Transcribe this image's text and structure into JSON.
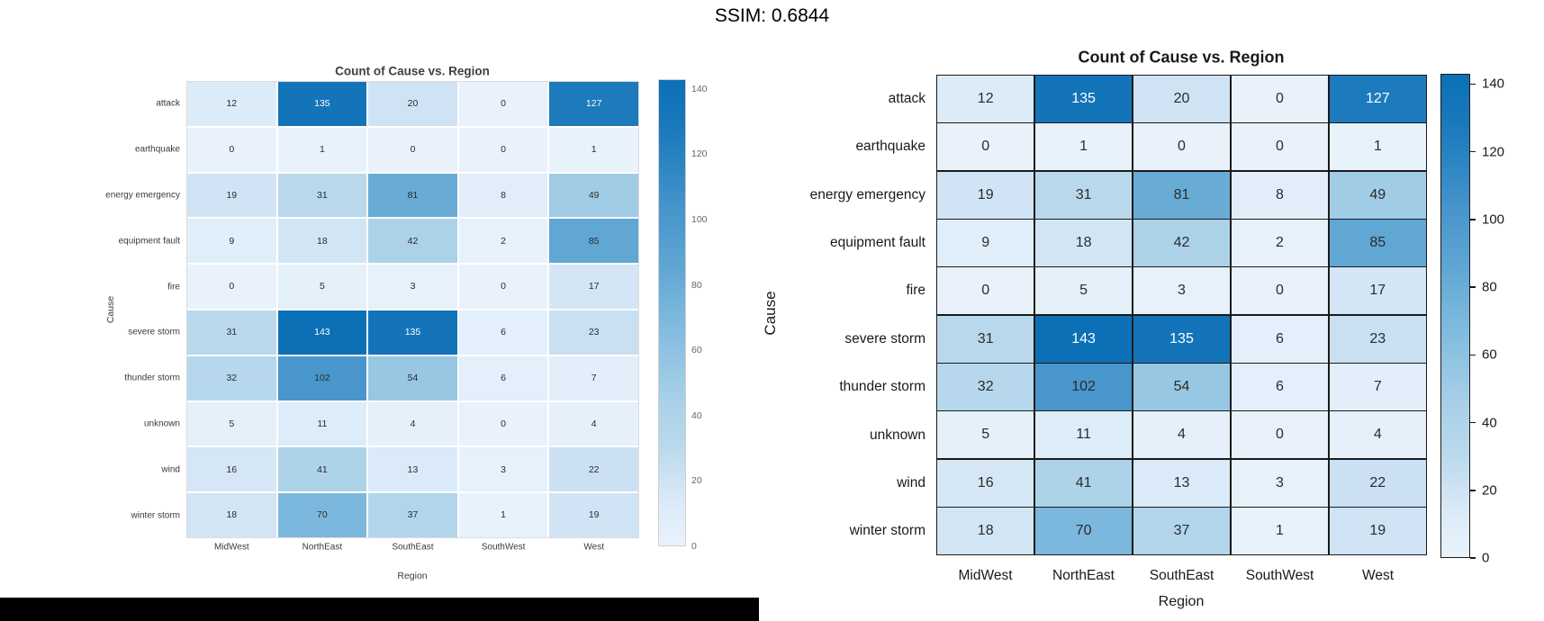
{
  "page": {
    "title": "SSIM: 0.6844"
  },
  "colors": {
    "scale": [
      [
        0.0,
        "#e9f2fb"
      ],
      [
        0.07,
        "#dfedf9"
      ],
      [
        0.14,
        "#cfe3f4"
      ],
      [
        0.22,
        "#b8d8ec"
      ],
      [
        0.3,
        "#abd2e9"
      ],
      [
        0.4,
        "#93c4e3"
      ],
      [
        0.5,
        "#79b7dc"
      ],
      [
        0.6,
        "#5fa6d3"
      ],
      [
        0.72,
        "#4795cc"
      ],
      [
        0.82,
        "#2b85c2"
      ],
      [
        0.9,
        "#1a78bc"
      ],
      [
        1.0,
        "#0b70b6"
      ]
    ],
    "white_text_min": 115,
    "cell_text_dark": "#2b2b2b",
    "cell_text_light": "#ffffff",
    "left_axis_text": "#3a3a3a",
    "left_title_text": "#3f3f3f",
    "left_tick_text": "#666666",
    "right_text": "#1a1a1a",
    "black_bar": "#000000"
  },
  "chart_data": [
    {
      "id": "left-heatmap",
      "type": "heatmap",
      "title": "Count of Cause vs. Region",
      "xlabel": "Region",
      "ylabel": "Cause",
      "rows": [
        "attack",
        "earthquake",
        "energy emergency",
        "equipment fault",
        "fire",
        "severe storm",
        "thunder storm",
        "unknown",
        "wind",
        "winter storm"
      ],
      "columns": [
        "MidWest",
        "NorthEast",
        "SouthEast",
        "SouthWest",
        "West"
      ],
      "values": [
        [
          12,
          135,
          20,
          0,
          127
        ],
        [
          0,
          1,
          0,
          0,
          1
        ],
        [
          19,
          31,
          81,
          8,
          49
        ],
        [
          9,
          18,
          42,
          2,
          85
        ],
        [
          0,
          5,
          3,
          0,
          17
        ],
        [
          31,
          143,
          135,
          6,
          23
        ],
        [
          32,
          102,
          54,
          6,
          7
        ],
        [
          5,
          11,
          4,
          0,
          4
        ],
        [
          16,
          41,
          13,
          3,
          22
        ],
        [
          18,
          70,
          37,
          1,
          19
        ]
      ],
      "vmin": 0,
      "vmax": 143,
      "colorbar_ticks": [
        140,
        120,
        100,
        80,
        60,
        40,
        20,
        0
      ],
      "legend_position": "right",
      "grid": "white-gaps"
    },
    {
      "id": "right-heatmap",
      "type": "heatmap",
      "title": "Count of Cause vs. Region",
      "xlabel": "Region",
      "ylabel": "Cause",
      "rows": [
        "attack",
        "earthquake",
        "energy emergency",
        "equipment fault",
        "fire",
        "severe storm",
        "thunder storm",
        "unknown",
        "wind",
        "winter storm"
      ],
      "columns": [
        "MidWest",
        "NorthEast",
        "SouthEast",
        "SouthWest",
        "West"
      ],
      "values": [
        [
          12,
          135,
          20,
          0,
          127
        ],
        [
          0,
          1,
          0,
          0,
          1
        ],
        [
          19,
          31,
          81,
          8,
          49
        ],
        [
          9,
          18,
          42,
          2,
          85
        ],
        [
          0,
          5,
          3,
          0,
          17
        ],
        [
          31,
          143,
          135,
          6,
          23
        ],
        [
          32,
          102,
          54,
          6,
          7
        ],
        [
          5,
          11,
          4,
          0,
          4
        ],
        [
          16,
          41,
          13,
          3,
          22
        ],
        [
          18,
          70,
          37,
          1,
          19
        ]
      ],
      "vmin": 0,
      "vmax": 143,
      "colorbar_ticks": [
        140,
        120,
        100,
        80,
        60,
        40,
        20,
        0
      ],
      "legend_position": "right",
      "grid": "black-borders"
    }
  ]
}
